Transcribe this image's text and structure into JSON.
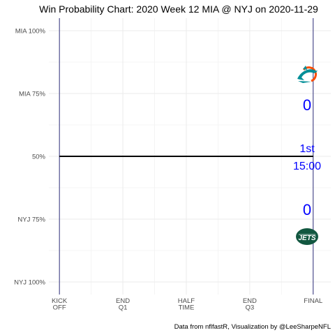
{
  "chart_data": {
    "type": "line",
    "title": "Win Probability Chart: 2020 Week 12 MIA @ NYJ on 2020-11-29",
    "y_ticks": [
      {
        "value": 1.0,
        "label": "MIA 100%"
      },
      {
        "value": 0.75,
        "label": "MIA 75%"
      },
      {
        "value": 0.5,
        "label": "50%"
      },
      {
        "value": 0.25,
        "label": "NYJ 75%"
      },
      {
        "value": 0.0,
        "label": "NYJ 100%"
      }
    ],
    "x_ticks": [
      {
        "value": 0,
        "label": [
          "KICK",
          "OFF"
        ]
      },
      {
        "value": 900,
        "label": [
          "END",
          "Q1"
        ]
      },
      {
        "value": 1800,
        "label": [
          "HALF",
          "TIME"
        ]
      },
      {
        "value": 2700,
        "label": [
          "END",
          "Q3"
        ]
      },
      {
        "value": 3600,
        "label": [
          "FINAL"
        ]
      }
    ],
    "xlim": [
      -150,
      3850
    ],
    "ylim": [
      -0.05,
      1.05
    ],
    "series": [
      {
        "x": [
          0,
          3600
        ],
        "y": [
          0.5,
          0.5
        ]
      }
    ],
    "vertical_lines": [
      0,
      3600
    ],
    "grid": true,
    "legend": "none"
  },
  "annotations": {
    "home_score": "0",
    "away_score": "0",
    "quarter": "1st",
    "clock": "15:00",
    "caption": "Data from nflfastR, Visualization by @LeeSharpeNFL"
  },
  "logos": {
    "top": "miami-dolphins-logo",
    "bottom": "new-york-jets-logo",
    "top_color": "#008e97",
    "top_accent": "#fc4c02",
    "bottom_color": "#125740",
    "bottom_text": "JETS"
  }
}
